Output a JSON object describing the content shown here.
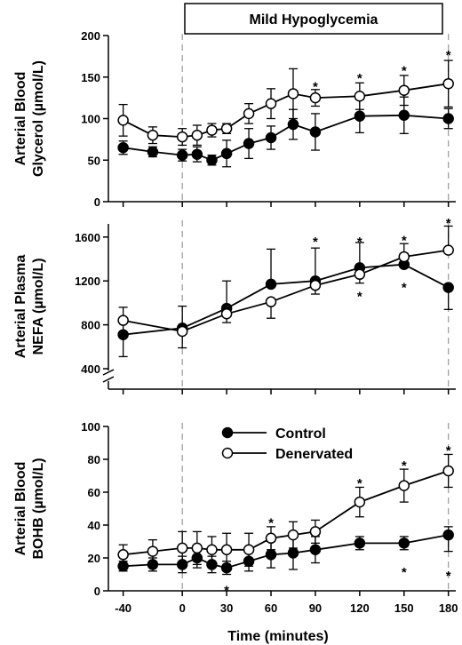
{
  "banner": "Mild Hypoglycemia",
  "x_axis": {
    "label": "Time (minutes)",
    "range": [
      -50,
      185
    ],
    "ticks": [
      -40,
      0,
      30,
      60,
      90,
      120,
      150,
      180
    ],
    "tick_labels": [
      "-40",
      "0",
      "30",
      "60",
      "90",
      "120",
      "150",
      "180"
    ]
  },
  "legend": {
    "placement": "top-left of bottom panel",
    "entries": [
      {
        "name": "Control",
        "marker": "filled-circle"
      },
      {
        "name": "Denervated",
        "marker": "open-circle"
      }
    ]
  },
  "chart_data": [
    {
      "type": "line",
      "panel": "top",
      "ylabel_lines": [
        "Arterial Blood",
        "Glycerol (µmol/L)"
      ],
      "ylim": [
        0,
        200
      ],
      "yticks": [
        0,
        50,
        100,
        150,
        200
      ],
      "x": [
        -40,
        -20,
        0,
        10,
        20,
        30,
        45,
        60,
        75,
        90,
        120,
        150,
        180
      ],
      "series": [
        {
          "name": "Control",
          "values": [
            65,
            60,
            56,
            57,
            50,
            58,
            70,
            77,
            93,
            84,
            103,
            104,
            100
          ],
          "err_up": [
            8,
            6,
            7,
            9,
            6,
            16,
            18,
            14,
            18,
            22,
            20,
            22,
            12
          ],
          "err_down": [
            8,
            6,
            7,
            9,
            6,
            16,
            18,
            14,
            18,
            22,
            20,
            22,
            12
          ]
        },
        {
          "name": "Denervated",
          "values": [
            98,
            80,
            78,
            80,
            86,
            88,
            106,
            118,
            130,
            125,
            127,
            134,
            142
          ],
          "err_up": [
            19,
            10,
            10,
            12,
            8,
            6,
            12,
            18,
            30,
            10,
            16,
            18,
            28
          ],
          "err_down": [
            19,
            10,
            10,
            12,
            8,
            6,
            12,
            18,
            30,
            10,
            16,
            18,
            28
          ]
        }
      ],
      "annotations": [
        {
          "x": 90,
          "y": 144,
          "text": "*"
        },
        {
          "x": 120,
          "y": 154,
          "text": "*"
        },
        {
          "x": 150,
          "y": 163,
          "text": "*"
        },
        {
          "x": 180,
          "y": 182,
          "text": "*"
        }
      ]
    },
    {
      "type": "line",
      "panel": "middle",
      "ylabel_lines": [
        "Arterial Plasma",
        "NEFA (µmol/L)"
      ],
      "ylim": [
        400,
        1720
      ],
      "yticks": [
        400,
        800,
        1200,
        1600
      ],
      "axis_break": true,
      "x": [
        -40,
        0,
        30,
        60,
        90,
        120,
        150,
        180
      ],
      "series": [
        {
          "name": "Control",
          "values": [
            710,
            770,
            950,
            1170,
            1200,
            1320,
            1350,
            1140
          ],
          "err_up": [
            250,
            200,
            250,
            320,
            300,
            230,
            100,
            0
          ],
          "err_down": [
            200,
            0,
            0,
            0,
            0,
            0,
            0,
            200
          ]
        },
        {
          "name": "Denervated",
          "values": [
            840,
            740,
            900,
            1010,
            1160,
            1260,
            1420,
            1480
          ],
          "err_up": [
            0,
            0,
            0,
            0,
            0,
            0,
            120,
            220
          ],
          "err_down": [
            0,
            150,
            80,
            150,
            80,
            80,
            0,
            0
          ]
        }
      ],
      "annotations": [
        {
          "x": 90,
          "y": 1600,
          "text": "*"
        },
        {
          "x": 120,
          "y": 1600,
          "text": "*"
        },
        {
          "x": 150,
          "y": 1610,
          "text": "*"
        },
        {
          "x": 180,
          "y": 1770,
          "text": "*"
        },
        {
          "x": 120,
          "y": 1100,
          "text": "*"
        },
        {
          "x": 150,
          "y": 1180,
          "text": "*"
        }
      ]
    },
    {
      "type": "line",
      "panel": "bottom",
      "ylabel_lines": [
        "Arterial Blood",
        "BOHB (µmol/L)"
      ],
      "ylim": [
        0,
        100
      ],
      "yticks": [
        0,
        20,
        40,
        60,
        80,
        100
      ],
      "x": [
        -40,
        -20,
        0,
        10,
        20,
        30,
        45,
        60,
        75,
        90,
        120,
        150,
        180
      ],
      "series": [
        {
          "name": "Control",
          "values": [
            15,
            16,
            16,
            20,
            16,
            14,
            18,
            22,
            23,
            25,
            29,
            29,
            34
          ],
          "err_up": [
            3,
            4,
            5,
            6,
            5,
            4,
            6,
            8,
            10,
            8,
            4,
            4,
            5
          ],
          "err_down": [
            3,
            4,
            5,
            6,
            5,
            4,
            6,
            8,
            10,
            8,
            4,
            4,
            10
          ]
        },
        {
          "name": "Denervated",
          "values": [
            22,
            24,
            26,
            26,
            25,
            25,
            25,
            32,
            34,
            36,
            54,
            64,
            73
          ],
          "err_up": [
            6,
            7,
            10,
            10,
            8,
            10,
            10,
            7,
            8,
            7,
            9,
            10,
            10
          ],
          "err_down": [
            6,
            7,
            10,
            10,
            8,
            10,
            10,
            7,
            8,
            7,
            9,
            10,
            10
          ]
        }
      ],
      "annotations": [
        {
          "x": 60,
          "y": 44,
          "text": "*"
        },
        {
          "x": 120,
          "y": 68,
          "text": "*"
        },
        {
          "x": 150,
          "y": 79,
          "text": "*"
        },
        {
          "x": 180,
          "y": 88,
          "text": "*"
        },
        {
          "x": 30,
          "y": 3,
          "text": "*"
        },
        {
          "x": 150,
          "y": 14,
          "text": "*"
        },
        {
          "x": 180,
          "y": 12,
          "text": "*"
        }
      ]
    }
  ]
}
